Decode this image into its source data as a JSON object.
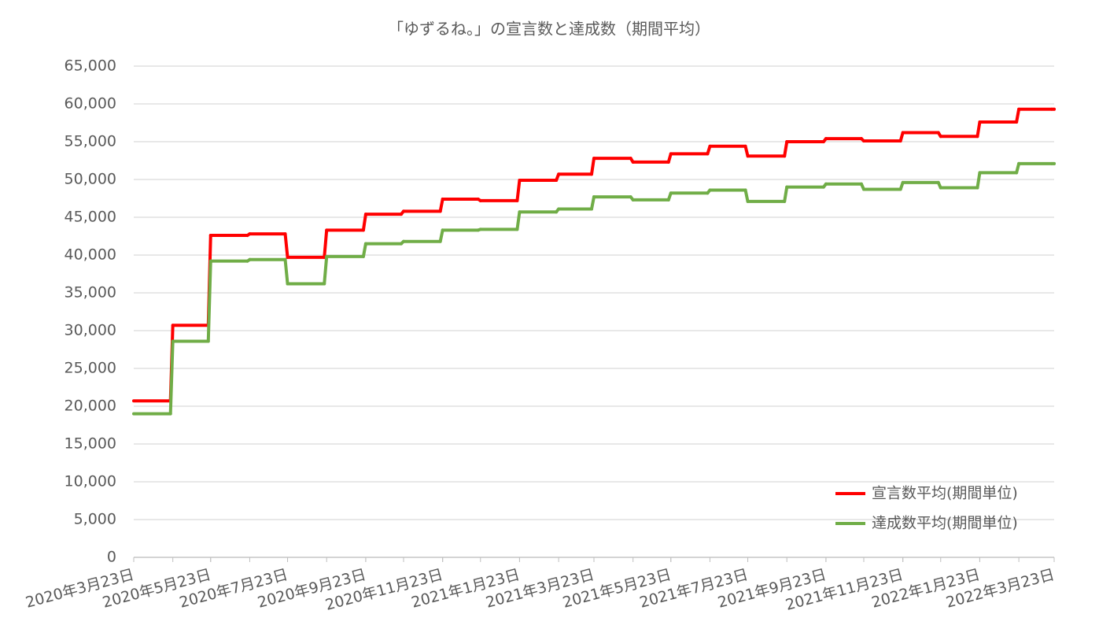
{
  "chart_data": {
    "type": "step-line",
    "title": "「ゆずるね。」の宣言数と達成数（期間平均）",
    "x": [
      "2020-03-23",
      "2020-04-23",
      "2020-05-23",
      "2020-06-23",
      "2020-07-23",
      "2020-08-23",
      "2020-09-23",
      "2020-10-23",
      "2020-11-23",
      "2020-12-23",
      "2021-01-23",
      "2021-02-23",
      "2021-03-23",
      "2021-04-23",
      "2021-05-23",
      "2021-06-23",
      "2021-07-23",
      "2021-08-23",
      "2021-09-23",
      "2021-10-23",
      "2021-11-23",
      "2021-12-23",
      "2022-01-23",
      "2022-02-23",
      "2022-03-23"
    ],
    "series": [
      {
        "name": "宣言数平均(期間単位)",
        "color": "#ff0000",
        "values": [
          20700,
          30700,
          42600,
          42800,
          39700,
          43300,
          45400,
          45800,
          47400,
          47200,
          49900,
          50700,
          52800,
          52300,
          53400,
          54400,
          53100,
          55000,
          55400,
          55100,
          56200,
          55700,
          57600,
          59300,
          59300
        ]
      },
      {
        "name": "達成数平均(期間単位)",
        "color": "#70ad47",
        "values": [
          19000,
          28600,
          39200,
          39400,
          36200,
          39800,
          41500,
          41800,
          43300,
          43400,
          45700,
          46100,
          47700,
          47300,
          48200,
          48600,
          47100,
          49000,
          49400,
          48700,
          49600,
          48900,
          50900,
          52100,
          52100
        ]
      }
    ],
    "xlim": [
      "2020-03-23",
      "2022-03-23"
    ],
    "xticks": [
      {
        "value": "2020-03-23",
        "label": "2020年3月23日"
      },
      {
        "value": "2020-05-23",
        "label": "2020年5月23日"
      },
      {
        "value": "2020-07-23",
        "label": "2020年7月23日"
      },
      {
        "value": "2020-09-23",
        "label": "2020年9月23日"
      },
      {
        "value": "2020-11-23",
        "label": "2020年11月23日"
      },
      {
        "value": "2021-01-23",
        "label": "2021年1月23日"
      },
      {
        "value": "2021-03-23",
        "label": "2021年3月23日"
      },
      {
        "value": "2021-05-23",
        "label": "2021年5月23日"
      },
      {
        "value": "2021-07-23",
        "label": "2021年7月23日"
      },
      {
        "value": "2021-09-23",
        "label": "2021年9月23日"
      },
      {
        "value": "2021-11-23",
        "label": "2021年11月23日"
      },
      {
        "value": "2022-01-23",
        "label": "2022年1月23日"
      },
      {
        "value": "2022-03-23",
        "label": "2022年3月23日"
      }
    ],
    "ylim": [
      0,
      65000
    ],
    "yticks": [
      0,
      {
        "value": 5000,
        "label": "5,000"
      },
      {
        "value": 10000,
        "label": "10,000"
      },
      {
        "value": 15000,
        "label": "15,000"
      },
      {
        "value": 20000,
        "label": "20,000"
      },
      {
        "value": 25000,
        "label": "25,000"
      },
      {
        "value": 30000,
        "label": "30,000"
      },
      {
        "value": 35000,
        "label": "35,000"
      },
      {
        "value": 40000,
        "label": "40,000"
      },
      {
        "value": 45000,
        "label": "45,000"
      },
      {
        "value": 50000,
        "label": "50,000"
      },
      {
        "value": 55000,
        "label": "55,000"
      },
      {
        "value": 60000,
        "label": "60,000"
      },
      {
        "value": 65000,
        "label": "65,000"
      }
    ],
    "grid": true,
    "legend": "lower-right"
  }
}
